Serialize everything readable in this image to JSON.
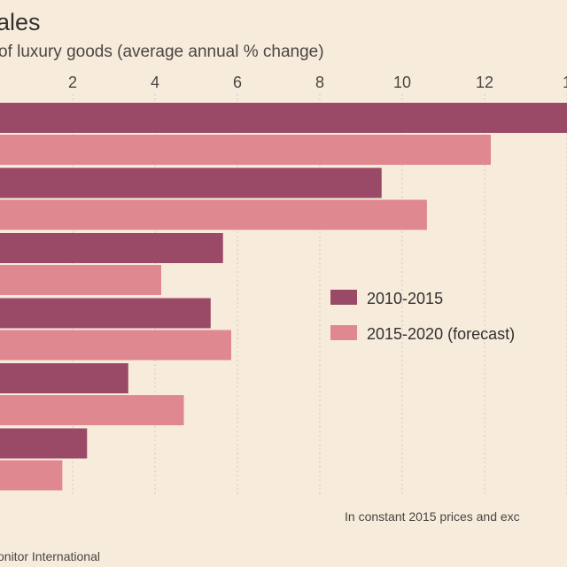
{
  "chart_data": {
    "type": "bar",
    "orientation": "horizontal",
    "title": "ales",
    "subtitle": "of luxury goods (average annual % change)",
    "x_ticks": [
      "2",
      "4",
      "6",
      "8",
      "10",
      "12",
      "1"
    ],
    "xlim": [
      0,
      14
    ],
    "categories": [
      "",
      "",
      "",
      "",
      "",
      ""
    ],
    "series": [
      {
        "name": "2010-2015",
        "color": "#9a4a66",
        "values": [
          14.0,
          9.5,
          5.65,
          5.35,
          3.35,
          2.35
        ]
      },
      {
        "name": "2015-2020 (forecast)",
        "color": "#e08890",
        "values": [
          12.15,
          10.6,
          4.15,
          5.85,
          4.7,
          1.75
        ]
      }
    ],
    "legend": "middle-right",
    "grid": true,
    "note": "In constant 2015 prices and exc",
    "source": "onitor International"
  }
}
